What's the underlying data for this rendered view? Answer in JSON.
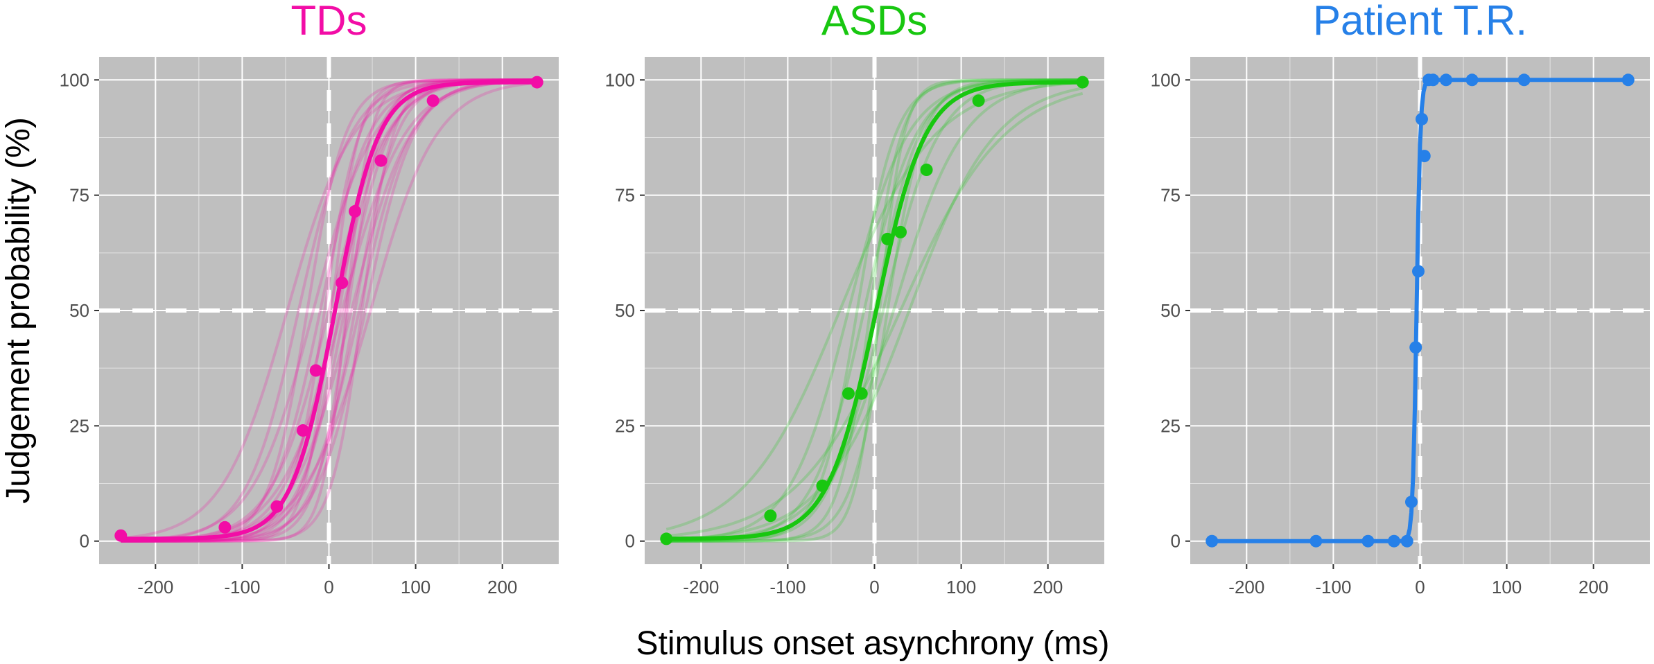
{
  "figure": {
    "xlabel": "Stimulus onset asynchrony (ms)",
    "ylabel": "Judgement probability (%)"
  },
  "chart_data": [
    {
      "type": "line",
      "title": "TDs",
      "color": "#f20da6",
      "xlabel": "Stimulus onset asynchrony (ms)",
      "ylabel": "Judgement probability (%)",
      "xlim": [
        -265,
        265
      ],
      "ylim": [
        -5,
        105
      ],
      "xticks": [
        -200,
        -100,
        0,
        100,
        200
      ],
      "yticks": [
        0,
        25,
        50,
        75,
        100
      ],
      "reference_lines": {
        "x": 0,
        "y": 50
      },
      "points": {
        "x": [
          -240,
          -120,
          -60,
          -30,
          -15,
          15,
          30,
          60,
          120,
          240
        ],
        "y": [
          1.2,
          3,
          7.5,
          24,
          37,
          56,
          71.5,
          82.5,
          95.5,
          99.5
        ]
      },
      "group_fit": {
        "pss": 7,
        "slope": 25,
        "floor": 0.5,
        "ceiling": 99.5
      },
      "individual_fits": [
        {
          "pss": -48,
          "slope": 38
        },
        {
          "pss": -35,
          "slope": 30
        },
        {
          "pss": -25,
          "slope": 22
        },
        {
          "pss": -18,
          "slope": 35
        },
        {
          "pss": -10,
          "slope": 28
        },
        {
          "pss": -5,
          "slope": 20
        },
        {
          "pss": 0,
          "slope": 33
        },
        {
          "pss": 3,
          "slope": 16
        },
        {
          "pss": 8,
          "slope": 30
        },
        {
          "pss": 12,
          "slope": 22
        },
        {
          "pss": 15,
          "slope": 36
        },
        {
          "pss": 18,
          "slope": 26
        },
        {
          "pss": 22,
          "slope": 19
        },
        {
          "pss": 26,
          "slope": 34
        },
        {
          "pss": 30,
          "slope": 24
        },
        {
          "pss": 35,
          "slope": 30
        },
        {
          "pss": 38,
          "slope": 18
        },
        {
          "pss": 42,
          "slope": 28
        },
        {
          "pss": 48,
          "slope": 38
        },
        {
          "pss": 20,
          "slope": 14
        }
      ]
    },
    {
      "type": "line",
      "title": "ASDs",
      "color": "#18c710",
      "xlabel": "Stimulus onset asynchrony (ms)",
      "ylabel": "Judgement probability (%)",
      "xlim": [
        -265,
        265
      ],
      "ylim": [
        -5,
        105
      ],
      "xticks": [
        -200,
        -100,
        0,
        100,
        200
      ],
      "yticks": [
        0,
        25,
        50,
        75,
        100
      ],
      "reference_lines": {
        "x": 0,
        "y": 50
      },
      "points": {
        "x": [
          -240,
          -120,
          -60,
          -30,
          -15,
          15,
          30,
          60,
          120,
          240
        ],
        "y": [
          0.5,
          5.5,
          12,
          32,
          32,
          65.5,
          67,
          80.5,
          95.5,
          99.5
        ]
      },
      "group_fit": {
        "pss": 2,
        "slope": 28,
        "floor": 0.5,
        "ceiling": 99.5
      },
      "individual_fits": [
        {
          "pss": -40,
          "slope": 55
        },
        {
          "pss": -30,
          "slope": 34
        },
        {
          "pss": -20,
          "slope": 22
        },
        {
          "pss": -12,
          "slope": 30
        },
        {
          "pss": -5,
          "slope": 18
        },
        {
          "pss": 0,
          "slope": 26
        },
        {
          "pss": 6,
          "slope": 14
        },
        {
          "pss": 10,
          "slope": 32
        },
        {
          "pss": 15,
          "slope": 21
        },
        {
          "pss": 22,
          "slope": 40
        },
        {
          "pss": 30,
          "slope": 60
        },
        {
          "pss": 40,
          "slope": 50
        }
      ]
    },
    {
      "type": "line",
      "title": "Patient T.R.",
      "color": "#2680e8",
      "xlabel": "Stimulus onset asynchrony (ms)",
      "ylabel": "Judgement probability (%)",
      "xlim": [
        -265,
        265
      ],
      "ylim": [
        -5,
        105
      ],
      "xticks": [
        -200,
        -100,
        0,
        100,
        200
      ],
      "yticks": [
        0,
        25,
        50,
        75,
        100
      ],
      "reference_lines": {
        "x": 0,
        "y": 50
      },
      "points": {
        "x": [
          -240,
          -120,
          -60,
          -30,
          -15,
          -10,
          -5,
          -2,
          2,
          5,
          10,
          15,
          30,
          60,
          120,
          240
        ],
        "y": [
          0,
          0,
          0,
          0,
          0,
          8.5,
          42,
          58.5,
          91.5,
          83.5,
          100,
          100,
          100,
          100,
          100,
          100
        ]
      },
      "group_fit": {
        "pss": -4,
        "slope": 2.2,
        "floor": 0,
        "ceiling": 100
      },
      "individual_fits": []
    }
  ]
}
